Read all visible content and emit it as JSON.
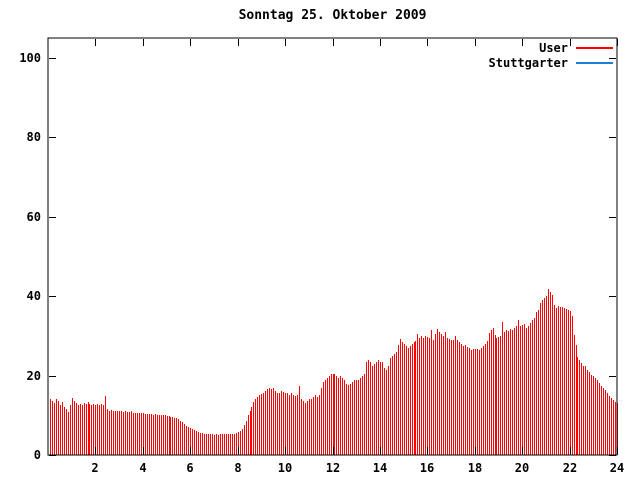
{
  "title": "Sonntag 25. Oktober 2009",
  "legend": [
    {
      "label": "User",
      "color": "#ff0000"
    },
    {
      "label": "Stuttgarter",
      "color": "#1e7fd4"
    }
  ],
  "colors": {
    "background": "#ffffff",
    "border": "#000000",
    "bars": "#ff0000",
    "text": "#000000"
  },
  "chart_data": {
    "type": "bar",
    "title": "Sonntag 25. Oktober 2009",
    "xlabel": "",
    "ylabel": "",
    "xlim": [
      0,
      24
    ],
    "ylim": [
      0,
      100
    ],
    "x_ticks": [
      2,
      4,
      6,
      8,
      10,
      12,
      14,
      16,
      18,
      20,
      22,
      24
    ],
    "y_ticks": [
      0,
      20,
      40,
      60,
      80,
      100
    ],
    "grid": false,
    "legend_position": "top-right",
    "interval_minutes": 5,
    "series": [
      {
        "name": "User",
        "color": "#ff0000",
        "style": "impulses",
        "values": [
          14,
          13.5,
          13,
          14,
          13.5,
          12.5,
          13.4,
          12,
          11.5,
          10.9,
          12.6,
          14.3,
          13.5,
          13,
          12.5,
          12.8,
          12.5,
          13,
          12.8,
          13.4,
          12.8,
          12.6,
          12.8,
          12.7,
          12.8,
          12.7,
          12.8,
          12.5,
          14.9,
          11.5,
          11,
          11.3,
          11,
          11.2,
          11,
          11.1,
          11,
          10.9,
          11,
          10.8,
          10.9,
          11,
          10.5,
          10.7,
          10.6,
          10.7,
          10.5,
          10.6,
          10.3,
          10.4,
          10.3,
          10.4,
          10.2,
          10.3,
          10,
          10.1,
          10,
          10.1,
          10,
          9.9,
          9.7,
          9.6,
          9.5,
          9.4,
          9.3,
          9,
          8.5,
          8.2,
          7.8,
          7.4,
          7,
          6.7,
          6.5,
          6.2,
          6,
          5.8,
          5.6,
          5.5,
          5.4,
          5.3,
          5.2,
          5.3,
          5.2,
          5.1,
          5.2,
          5.1,
          5.2,
          5.3,
          5.2,
          5.4,
          5.3,
          5.2,
          5.3,
          5.4,
          5.5,
          5.7,
          6,
          6.5,
          7.5,
          8.5,
          10,
          11,
          12,
          13.4,
          14,
          14.5,
          15,
          15.3,
          15.5,
          16,
          16.5,
          17,
          16.5,
          17,
          16,
          15.5,
          15.5,
          16,
          15.8,
          15.6,
          15.5,
          15,
          15.5,
          15,
          14.8,
          15,
          17.5,
          14,
          13.5,
          13,
          13.5,
          14,
          14,
          14.5,
          15,
          14.5,
          15,
          17,
          18.5,
          19,
          19.5,
          20,
          20.3,
          20.5,
          20.3,
          20,
          19.5,
          19.8,
          19.5,
          19,
          18,
          17.6,
          18,
          18.5,
          18.8,
          19,
          19,
          19.5,
          20,
          20.5,
          23.5,
          24,
          23.5,
          22.5,
          23,
          23.5,
          24,
          23.5,
          23.5,
          22,
          21.5,
          22.3,
          24.5,
          25,
          25.5,
          26,
          27.7,
          29.2,
          28.5,
          28,
          27.5,
          27,
          27.5,
          28,
          28.5,
          28.6,
          30.5,
          29.5,
          30,
          29.5,
          30,
          29.8,
          29.5,
          31.5,
          29,
          30.5,
          31.8,
          31,
          30.5,
          30,
          31,
          29.5,
          29.2,
          29,
          29,
          30,
          29,
          28.5,
          28,
          27.5,
          27.8,
          27.3,
          27,
          26.5,
          26.8,
          26.6,
          26.8,
          26.5,
          27,
          27.5,
          28,
          28.6,
          30.7,
          31.5,
          31.9,
          30.3,
          29.5,
          29.8,
          30,
          33.6,
          31.1,
          31.5,
          31.2,
          31.8,
          31.5,
          32,
          32.5,
          33.9,
          32.5,
          32.8,
          33,
          32,
          32.5,
          33.2,
          34,
          34.5,
          36.1,
          36.5,
          38.2,
          39,
          39.5,
          40,
          41.8,
          41,
          40.3,
          37.8,
          37,
          37.5,
          37.2,
          37.4,
          37,
          36.8,
          36.5,
          36.2,
          35,
          30.3,
          27.7,
          24.8,
          23.9,
          23.2,
          22.5,
          22.3,
          21.5,
          20.8,
          20.2,
          19.8,
          19.5,
          18.8,
          18.1,
          17.5,
          16.8,
          16.4,
          15.5,
          14.8,
          14.3,
          13.8,
          13.4,
          13
        ]
      },
      {
        "name": "Stuttgarter",
        "color": "#1e7fd4",
        "style": "line",
        "values": []
      }
    ]
  }
}
